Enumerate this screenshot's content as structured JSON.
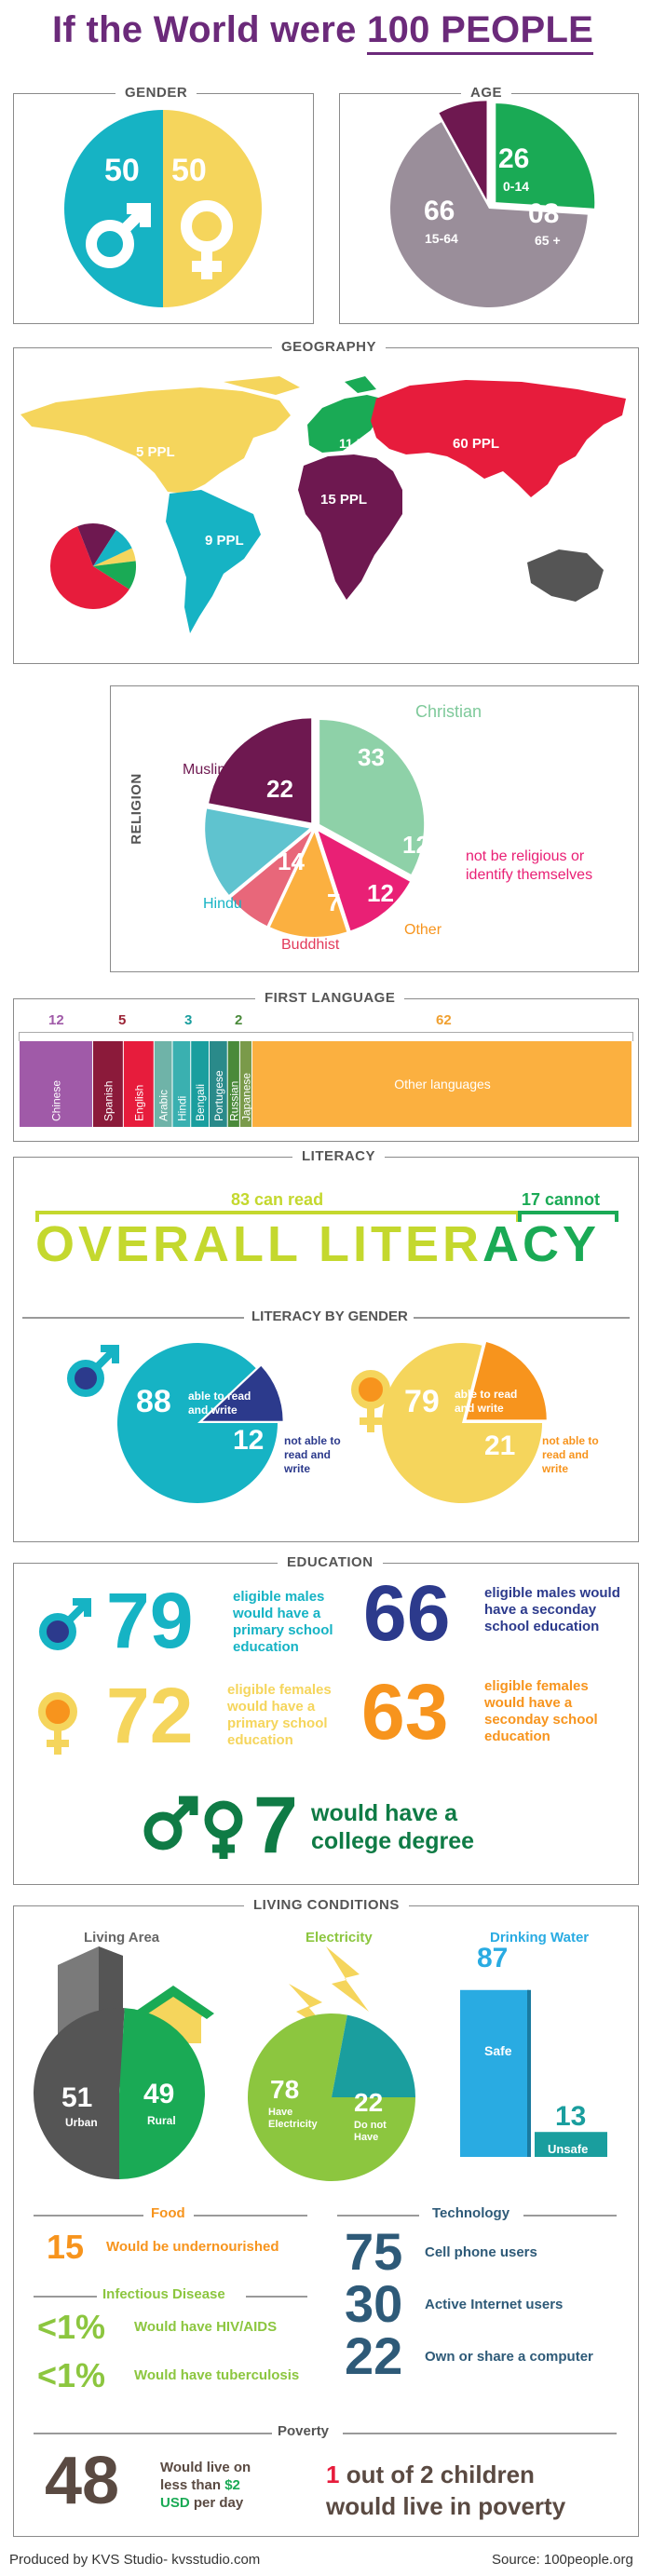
{
  "header": {
    "title_prefix": "If the World were ",
    "title_emph": "100 PEOPLE"
  },
  "colors": {
    "teal": "#16b3c4",
    "yellow": "#f5d55c",
    "purple": "#6e1850",
    "green": "#1aaa55",
    "grey": "#9a8e9a",
    "red": "#e71c3c",
    "dark_green": "#0f7b45",
    "navy": "#2c3a8c",
    "orange": "#f7941d",
    "pink": "#e92075",
    "lime": "#c4d82e",
    "slate": "#2e5a78"
  },
  "gender": {
    "label": "GENDER",
    "male": "50",
    "female": "50",
    "male_icon": "male-icon",
    "female_icon": "female-icon"
  },
  "age": {
    "label": "AGE",
    "groups": [
      {
        "value": "26",
        "range": "0-14"
      },
      {
        "value": "66",
        "range": "15-64"
      },
      {
        "value": "08",
        "range": "65 +"
      }
    ]
  },
  "geography": {
    "label": "GEOGRAPHY",
    "regions": [
      {
        "name": "North America",
        "label": "5 PPL",
        "value": 5
      },
      {
        "name": "Europe",
        "label": "11 PPL",
        "value": 11
      },
      {
        "name": "Asia",
        "label": "60 PPL",
        "value": 60
      },
      {
        "name": "Africa",
        "label": "15 PPL",
        "value": 15
      },
      {
        "name": "Latin America",
        "label": "9 PPL",
        "value": 9
      }
    ]
  },
  "religion": {
    "label": "RELIGION",
    "christian": {
      "name": "Christian",
      "value": "33"
    },
    "muslim": {
      "name": "Muslim",
      "value": "22"
    },
    "nonrel": {
      "name": "not be religious or identify themselves",
      "value": "12"
    },
    "other": {
      "name": "Other",
      "value": "12"
    },
    "buddhist": {
      "name": "Buddhist",
      "value": "7"
    },
    "hindu": {
      "name": "Hindu",
      "value": "14"
    }
  },
  "first_language": {
    "label": "FIRST LANGUAGE",
    "totals": [
      "12",
      "5",
      "3",
      "2",
      "62"
    ],
    "bars": [
      {
        "name": "Chinese",
        "value": 12
      },
      {
        "name": "Spanish",
        "value": 5
      },
      {
        "name": "English",
        "value": 5
      },
      {
        "name": "Arabic",
        "value": 3
      },
      {
        "name": "Hindi",
        "value": 3
      },
      {
        "name": "Bengali",
        "value": 3
      },
      {
        "name": "Portugese",
        "value": 3
      },
      {
        "name": "Russian",
        "value": 2
      },
      {
        "name": "Japanese",
        "value": 2
      },
      {
        "name": "Other languages",
        "value": 62
      }
    ]
  },
  "literacy": {
    "label": "LITERACY",
    "can_read": "83 can read",
    "cannot": "17 cannot",
    "word_left": "OVERALL LITER",
    "word_right": "ACY",
    "by_gender_label": "LITERACY BY GENDER",
    "male": {
      "value": "88",
      "text": "able to read and write",
      "minor": "12",
      "minor_text": "not able to read and write"
    },
    "female": {
      "value": "79",
      "text": "able to read and write",
      "minor": "21",
      "minor_text": "not able to read and write"
    }
  },
  "education": {
    "label": "EDUCATION",
    "items": [
      {
        "value": "79",
        "text": "eligible males would have a primary school education"
      },
      {
        "value": "66",
        "text": "eligible males would have a seconday school education"
      },
      {
        "value": "72",
        "text": "eligible females would have a primary school education"
      },
      {
        "value": "63",
        "text": "eligible females would have a seconday school education"
      }
    ],
    "college_value": "7",
    "college_text": "would have a college degree"
  },
  "living": {
    "label": "LIVING CONDITIONS",
    "area": {
      "title": "Living Area",
      "urban": "51",
      "urban_label": "Urban",
      "rural": "49",
      "rural_label": "Rural"
    },
    "electricity": {
      "title": "Electricity",
      "have": "78",
      "have_label": "Have Electricity",
      "not": "22",
      "not_label": "Do not Have"
    },
    "water": {
      "title": "Drinking Water",
      "safe": "87",
      "safe_label": "Safe",
      "unsafe": "13",
      "unsafe_label": "Unsafe"
    },
    "food": {
      "title": "Food",
      "value": "15",
      "text": "Would be undernourished"
    },
    "disease": {
      "title": "Infectious Disease",
      "items": [
        {
          "value": "<1%",
          "text": "Would have HIV/AIDS"
        },
        {
          "value": "<1%",
          "text": "Would have tuberculosis"
        }
      ]
    },
    "technology": {
      "title": "Technology",
      "items": [
        {
          "value": "75",
          "text": "Cell phone users"
        },
        {
          "value": "30",
          "text": "Active Internet users"
        },
        {
          "value": "22",
          "text": "Own or share a computer"
        }
      ]
    },
    "poverty": {
      "title": "Poverty",
      "value": "48",
      "text_a": "Would live on less than ",
      "text_b": "$2",
      "text_c": "USD",
      "text_d": " per day",
      "children_a": "1",
      "children_b": " out of 2 children",
      "children_c": "would live in poverty"
    }
  },
  "footer": {
    "left": "Produced by KVS Studio- kvsstudio.com",
    "right": "Source: 100people.org"
  },
  "chart_data": [
    {
      "type": "pie",
      "title": "GENDER",
      "categories": [
        "Male",
        "Female"
      ],
      "values": [
        50,
        50
      ]
    },
    {
      "type": "pie",
      "title": "AGE",
      "categories": [
        "0-14",
        "15-64",
        "65 +"
      ],
      "values": [
        26,
        66,
        8
      ]
    },
    {
      "type": "pie",
      "title": "GEOGRAPHY",
      "categories": [
        "5 PPL",
        "11 PPL",
        "60 PPL",
        "15 PPL",
        "9 PPL"
      ],
      "values": [
        5,
        11,
        60,
        15,
        9
      ]
    },
    {
      "type": "pie",
      "title": "RELIGION",
      "categories": [
        "Christian",
        "not be religious or identify themselves",
        "Other",
        "Buddhist",
        "Hindu",
        "Muslim"
      ],
      "values": [
        33,
        12,
        12,
        7,
        14,
        22
      ]
    },
    {
      "type": "bar",
      "title": "FIRST LANGUAGE",
      "categories": [
        "Chinese",
        "Spanish",
        "English",
        "Arabic",
        "Hindi",
        "Bengali",
        "Portugese",
        "Russian",
        "Japanese",
        "Other languages"
      ],
      "values": [
        12,
        5,
        5,
        3,
        3,
        3,
        3,
        2,
        2,
        62
      ]
    },
    {
      "type": "pie",
      "title": "Living Area",
      "categories": [
        "Urban",
        "Rural"
      ],
      "values": [
        51,
        49
      ]
    },
    {
      "type": "pie",
      "title": "Electricity",
      "categories": [
        "Have Electricity",
        "Do not Have"
      ],
      "values": [
        78,
        22
      ]
    },
    {
      "type": "bar",
      "title": "Drinking Water",
      "categories": [
        "Safe",
        "Unsafe"
      ],
      "values": [
        87,
        13
      ]
    }
  ]
}
